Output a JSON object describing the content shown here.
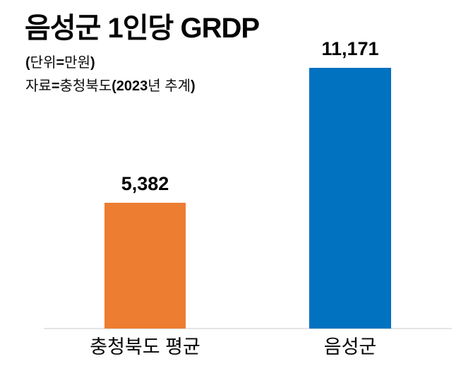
{
  "chart_data": {
    "type": "bar",
    "title": "음성군 1인당 GRDP",
    "unit_note": "(단위=만원)",
    "source_note": "자료=충청북도(2023년 추계)",
    "categories": [
      "충청북도 평균",
      "음성군"
    ],
    "values": [
      5382,
      11171
    ],
    "value_labels": [
      "5,382",
      "11,171"
    ],
    "colors": [
      "#ED7D31",
      "#0172C0"
    ],
    "axis_line_color": "#E4E4E4",
    "ylim": [
      0,
      11171
    ],
    "grid": false,
    "legend": "none",
    "xlabel": "",
    "ylabel": ""
  },
  "header": {
    "unit_note_segments": [
      {
        "text": "(",
        "bold": true
      },
      {
        "text": "단위",
        "bold": false
      },
      {
        "text": "=",
        "bold": true
      },
      {
        "text": "만원",
        "bold": false
      },
      {
        "text": ")",
        "bold": true
      }
    ],
    "source_note_segments": [
      {
        "text": "자료",
        "bold": false
      },
      {
        "text": "=",
        "bold": true
      },
      {
        "text": "충청북도",
        "bold": false
      },
      {
        "text": "(2023",
        "bold": true
      },
      {
        "text": "년 추계",
        "bold": false
      },
      {
        "text": ")",
        "bold": true
      }
    ]
  }
}
